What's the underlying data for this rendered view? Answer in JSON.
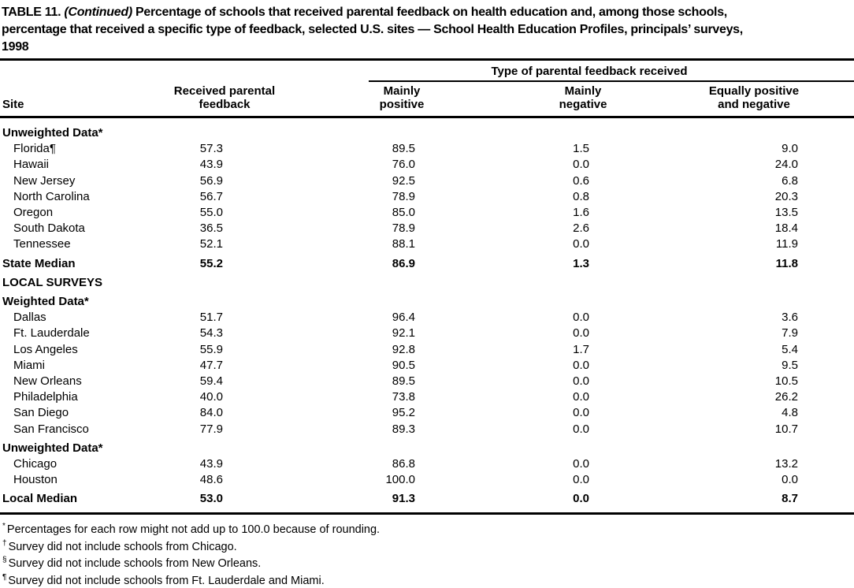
{
  "title": {
    "line1_pre": "TABLE 11. ",
    "line1_italic": "(Continued)",
    "line1_post": " Percentage of schools that received parental feedback on health education and, among those schools,",
    "line2": "percentage that received a specific type of feedback, selected U.S. sites — School Health Education Profiles, principals’ surveys,",
    "line3": "1998"
  },
  "table": {
    "group_header": "Type of parental feedback received",
    "columns": {
      "site": "Site",
      "received": [
        "Received parental",
        "feedback"
      ],
      "mainly_positive": [
        "Mainly",
        "positive"
      ],
      "mainly_negative": [
        "Mainly",
        "negative"
      ],
      "equally": [
        "Equally positive",
        "and negative"
      ]
    },
    "rows": [
      {
        "type": "section",
        "label": "Unweighted Data*"
      },
      {
        "type": "data",
        "site": "Florida¶",
        "values": [
          "57.3",
          "89.5",
          "1.5",
          "9.0"
        ]
      },
      {
        "type": "data",
        "site": "Hawaii",
        "values": [
          "43.9",
          "76.0",
          "0.0",
          "24.0"
        ]
      },
      {
        "type": "data",
        "site": "New Jersey",
        "values": [
          "56.9",
          "92.5",
          "0.6",
          "6.8"
        ]
      },
      {
        "type": "data",
        "site": "North Carolina",
        "values": [
          "56.7",
          "78.9",
          "0.8",
          "20.3"
        ]
      },
      {
        "type": "data",
        "site": "Oregon",
        "values": [
          "55.0",
          "85.0",
          "1.6",
          "13.5"
        ]
      },
      {
        "type": "data",
        "site": "South Dakota",
        "values": [
          "36.5",
          "78.9",
          "2.6",
          "18.4"
        ]
      },
      {
        "type": "data",
        "site": "Tennessee",
        "values": [
          "52.1",
          "88.1",
          "0.0",
          "11.9"
        ]
      },
      {
        "type": "median",
        "site": "State Median",
        "values": [
          "55.2",
          "86.9",
          "1.3",
          "11.8"
        ]
      },
      {
        "type": "section",
        "label": "LOCAL SURVEYS"
      },
      {
        "type": "section",
        "label": "Weighted Data*"
      },
      {
        "type": "data",
        "site": "Dallas",
        "values": [
          "51.7",
          "96.4",
          "0.0",
          "3.6"
        ]
      },
      {
        "type": "data",
        "site": "Ft. Lauderdale",
        "values": [
          "54.3",
          "92.1",
          "0.0",
          "7.9"
        ]
      },
      {
        "type": "data",
        "site": "Los Angeles",
        "values": [
          "55.9",
          "92.8",
          "1.7",
          "5.4"
        ]
      },
      {
        "type": "data",
        "site": "Miami",
        "values": [
          "47.7",
          "90.5",
          "0.0",
          "9.5"
        ]
      },
      {
        "type": "data",
        "site": "New Orleans",
        "values": [
          "59.4",
          "89.5",
          "0.0",
          "10.5"
        ]
      },
      {
        "type": "data",
        "site": "Philadelphia",
        "values": [
          "40.0",
          "73.8",
          "0.0",
          "26.2"
        ]
      },
      {
        "type": "data",
        "site": "San Diego",
        "values": [
          "84.0",
          "95.2",
          "0.0",
          "4.8"
        ]
      },
      {
        "type": "data",
        "site": "San Francisco",
        "values": [
          "77.9",
          "89.3",
          "0.0",
          "10.7"
        ]
      },
      {
        "type": "section",
        "label": "Unweighted Data*"
      },
      {
        "type": "data",
        "site": "Chicago",
        "values": [
          "43.9",
          "86.8",
          "0.0",
          "13.2"
        ]
      },
      {
        "type": "data",
        "site": "Houston",
        "values": [
          "48.6",
          "100.0",
          "0.0",
          "0.0"
        ]
      },
      {
        "type": "median",
        "site": "Local Median",
        "values": [
          "53.0",
          "91.3",
          "0.0",
          "8.7"
        ]
      }
    ]
  },
  "footnotes": [
    {
      "marker": "*",
      "text": "Percentages for each row might not add up to 100.0 because of rounding."
    },
    {
      "marker": "†",
      "text": "Survey did not include schools from Chicago."
    },
    {
      "marker": "§",
      "text": "Survey did not include schools from New Orleans."
    },
    {
      "marker": "¶",
      "text": "Survey did not include schools from Ft. Lauderdale and Miami."
    }
  ]
}
